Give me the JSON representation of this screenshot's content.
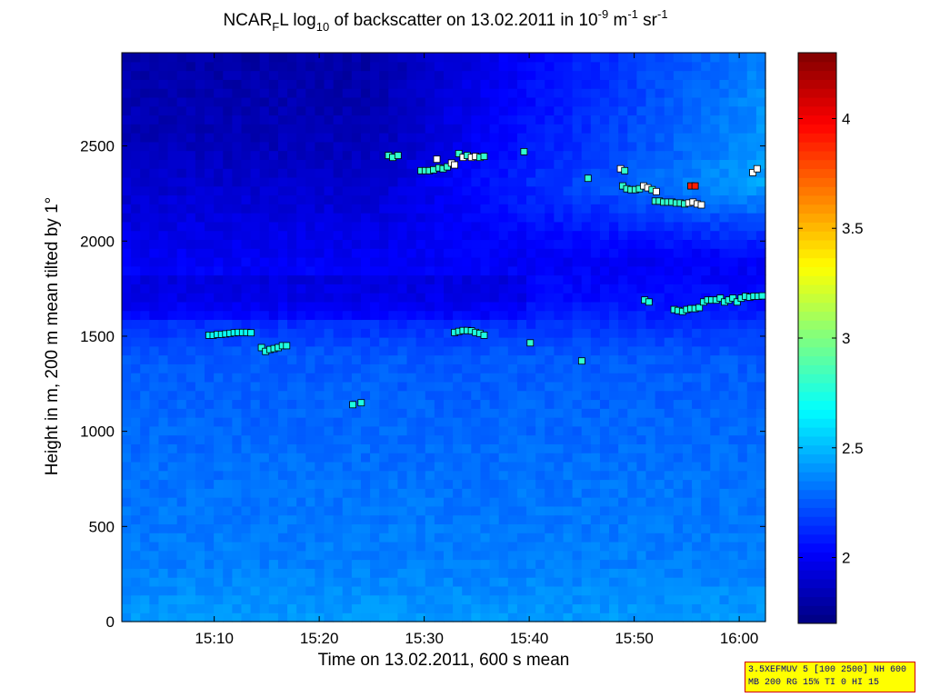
{
  "title": {
    "prefix": "NCAR",
    "sub1": "F",
    "mid1": "L log",
    "sub2": "10",
    "mid2": " of backscatter on 13.02.2011 in 10",
    "sup1": "-9",
    "mid3": " m",
    "sup2": "-1",
    "mid4": " sr",
    "sup3": "-1"
  },
  "info_box": {
    "line1": "3.5XEFMUV 5 [100 2500] NH 600",
    "line2": "MB 200 RG 15% TI 0 HI 15"
  },
  "chart_data": {
    "type": "heatmap",
    "xlabel": "Time on 13.02.2011, 600 s mean",
    "ylabel": "Height in m, 200 m mean tilted by 1°",
    "x_unit": "minutes after 15:00",
    "xlim": [
      1.2,
      62.5
    ],
    "ylim": [
      0,
      2990
    ],
    "x_ticks": [
      {
        "value": 10,
        "label": "15:10"
      },
      {
        "value": 20,
        "label": "15:20"
      },
      {
        "value": 30,
        "label": "15:30"
      },
      {
        "value": 40,
        "label": "15:40"
      },
      {
        "value": 50,
        "label": "15:50"
      },
      {
        "value": 60,
        "label": "16:00"
      }
    ],
    "y_ticks": [
      {
        "value": 0,
        "label": "0"
      },
      {
        "value": 500,
        "label": "500"
      },
      {
        "value": 1000,
        "label": "1000"
      },
      {
        "value": 1500,
        "label": "1500"
      },
      {
        "value": 2000,
        "label": "2000"
      },
      {
        "value": 2500,
        "label": "2500"
      }
    ],
    "colorbar": {
      "range": [
        1.7,
        4.3
      ],
      "ticks": [
        {
          "value": 2,
          "label": "2"
        },
        {
          "value": 2.5,
          "label": "2.5"
        },
        {
          "value": 3,
          "label": "3"
        },
        {
          "value": 3.5,
          "label": "3.5"
        },
        {
          "value": 4,
          "label": "4"
        }
      ],
      "colormap": "jet"
    },
    "field_profile": [
      {
        "height": 0,
        "value": 2.42
      },
      {
        "height": 300,
        "value": 2.35
      },
      {
        "height": 700,
        "value": 2.32
      },
      {
        "height": 1100,
        "value": 2.28
      },
      {
        "height": 1400,
        "value": 2.25
      },
      {
        "height": 1700,
        "value": 2.05
      },
      {
        "height": 2100,
        "value": 1.95
      },
      {
        "height": 2500,
        "value": 1.85
      },
      {
        "height": 2990,
        "value": 1.8
      }
    ],
    "markers": [
      {
        "x": 9.5,
        "y": 1505,
        "v": 2.7
      },
      {
        "x": 9.9,
        "y": 1505,
        "v": 2.7
      },
      {
        "x": 10.3,
        "y": 1510,
        "v": 2.7
      },
      {
        "x": 10.7,
        "y": 1510,
        "v": 2.7
      },
      {
        "x": 11.1,
        "y": 1512,
        "v": 2.7
      },
      {
        "x": 11.5,
        "y": 1515,
        "v": 2.7
      },
      {
        "x": 11.9,
        "y": 1518,
        "v": 2.7
      },
      {
        "x": 12.3,
        "y": 1520,
        "v": 2.7
      },
      {
        "x": 12.7,
        "y": 1520,
        "v": 2.7
      },
      {
        "x": 13.1,
        "y": 1520,
        "v": 2.7
      },
      {
        "x": 13.5,
        "y": 1518,
        "v": 2.7
      },
      {
        "x": 14.5,
        "y": 1440,
        "v": 2.75
      },
      {
        "x": 14.9,
        "y": 1420,
        "v": 2.75
      },
      {
        "x": 15.3,
        "y": 1430,
        "v": 2.75
      },
      {
        "x": 15.7,
        "y": 1435,
        "v": 2.75
      },
      {
        "x": 16.1,
        "y": 1440,
        "v": 2.75
      },
      {
        "x": 16.5,
        "y": 1450,
        "v": 2.75
      },
      {
        "x": 16.9,
        "y": 1450,
        "v": 2.75
      },
      {
        "x": 23.2,
        "y": 1140,
        "v": 2.75
      },
      {
        "x": 24.0,
        "y": 1150,
        "v": 2.75
      },
      {
        "x": 26.6,
        "y": 2450,
        "v": 2.8
      },
      {
        "x": 27.0,
        "y": 2440,
        "v": 2.8
      },
      {
        "x": 27.5,
        "y": 2450,
        "v": 2.8
      },
      {
        "x": 29.7,
        "y": 2370,
        "v": 2.8
      },
      {
        "x": 30.1,
        "y": 2370,
        "v": 2.8
      },
      {
        "x": 30.5,
        "y": 2370,
        "v": 2.8
      },
      {
        "x": 30.9,
        "y": 2375,
        "v": 2.8
      },
      {
        "x": 31.2,
        "y": 2430,
        "v": 4.0
      },
      {
        "x": 31.4,
        "y": 2385,
        "v": 2.8
      },
      {
        "x": 31.8,
        "y": 2380,
        "v": 2.8
      },
      {
        "x": 32.2,
        "y": 2390,
        "v": 2.8
      },
      {
        "x": 32.6,
        "y": 2410,
        "v": 4.0
      },
      {
        "x": 32.9,
        "y": 2400,
        "v": 4.0
      },
      {
        "x": 33.3,
        "y": 2460,
        "v": 2.8
      },
      {
        "x": 33.7,
        "y": 2440,
        "v": 4.0
      },
      {
        "x": 34.1,
        "y": 2450,
        "v": 2.8
      },
      {
        "x": 34.5,
        "y": 2440,
        "v": 4.0
      },
      {
        "x": 34.9,
        "y": 2445,
        "v": 4.0
      },
      {
        "x": 35.3,
        "y": 2440,
        "v": 2.8
      },
      {
        "x": 35.7,
        "y": 2445,
        "v": 2.8
      },
      {
        "x": 32.9,
        "y": 1520,
        "v": 2.75
      },
      {
        "x": 33.3,
        "y": 1525,
        "v": 2.75
      },
      {
        "x": 33.7,
        "y": 1530,
        "v": 2.75
      },
      {
        "x": 34.1,
        "y": 1530,
        "v": 2.75
      },
      {
        "x": 34.5,
        "y": 1528,
        "v": 2.75
      },
      {
        "x": 34.9,
        "y": 1520,
        "v": 2.75
      },
      {
        "x": 35.3,
        "y": 1515,
        "v": 2.75
      },
      {
        "x": 35.7,
        "y": 1505,
        "v": 2.75
      },
      {
        "x": 39.5,
        "y": 2470,
        "v": 2.8
      },
      {
        "x": 40.1,
        "y": 1465,
        "v": 2.8
      },
      {
        "x": 45.0,
        "y": 1370,
        "v": 2.8
      },
      {
        "x": 45.6,
        "y": 2330,
        "v": 2.8
      },
      {
        "x": 48.7,
        "y": 2380,
        "v": 4.0
      },
      {
        "x": 49.1,
        "y": 2370,
        "v": 2.8
      },
      {
        "x": 48.9,
        "y": 2290,
        "v": 2.8
      },
      {
        "x": 49.3,
        "y": 2275,
        "v": 2.8
      },
      {
        "x": 49.7,
        "y": 2270,
        "v": 2.8
      },
      {
        "x": 50.1,
        "y": 2270,
        "v": 2.8
      },
      {
        "x": 50.5,
        "y": 2275,
        "v": 2.8
      },
      {
        "x": 50.9,
        "y": 2290,
        "v": 4.0
      },
      {
        "x": 51.3,
        "y": 2280,
        "v": 4.0
      },
      {
        "x": 51.7,
        "y": 2270,
        "v": 2.8
      },
      {
        "x": 52.1,
        "y": 2260,
        "v": 4.0
      },
      {
        "x": 52.0,
        "y": 2210,
        "v": 2.8
      },
      {
        "x": 52.4,
        "y": 2210,
        "v": 2.8
      },
      {
        "x": 52.8,
        "y": 2205,
        "v": 2.8
      },
      {
        "x": 53.2,
        "y": 2205,
        "v": 2.8
      },
      {
        "x": 53.6,
        "y": 2205,
        "v": 2.8
      },
      {
        "x": 54.0,
        "y": 2200,
        "v": 2.8
      },
      {
        "x": 54.4,
        "y": 2200,
        "v": 2.8
      },
      {
        "x": 54.8,
        "y": 2195,
        "v": 2.8
      },
      {
        "x": 55.2,
        "y": 2200,
        "v": 4.0
      },
      {
        "x": 55.6,
        "y": 2205,
        "v": 4.0
      },
      {
        "x": 56.0,
        "y": 2195,
        "v": 4.0
      },
      {
        "x": 56.4,
        "y": 2190,
        "v": 4.0
      },
      {
        "x": 55.4,
        "y": 2290,
        "v": 3.9
      },
      {
        "x": 55.8,
        "y": 2290,
        "v": 3.9
      },
      {
        "x": 61.3,
        "y": 2360,
        "v": 4.0
      },
      {
        "x": 61.7,
        "y": 2380,
        "v": 4.0
      },
      {
        "x": 51.0,
        "y": 1690,
        "v": 2.75
      },
      {
        "x": 51.4,
        "y": 1680,
        "v": 2.75
      },
      {
        "x": 53.8,
        "y": 1640,
        "v": 2.75
      },
      {
        "x": 54.2,
        "y": 1635,
        "v": 2.75
      },
      {
        "x": 54.6,
        "y": 1630,
        "v": 2.75
      },
      {
        "x": 55.0,
        "y": 1640,
        "v": 2.75
      },
      {
        "x": 55.4,
        "y": 1645,
        "v": 2.75
      },
      {
        "x": 55.8,
        "y": 1645,
        "v": 2.75
      },
      {
        "x": 56.2,
        "y": 1650,
        "v": 2.75
      },
      {
        "x": 56.6,
        "y": 1680,
        "v": 2.75
      },
      {
        "x": 57.0,
        "y": 1690,
        "v": 2.75
      },
      {
        "x": 57.4,
        "y": 1690,
        "v": 2.75
      },
      {
        "x": 57.8,
        "y": 1690,
        "v": 2.75
      },
      {
        "x": 58.2,
        "y": 1700,
        "v": 2.75
      },
      {
        "x": 58.6,
        "y": 1680,
        "v": 2.75
      },
      {
        "x": 59.0,
        "y": 1690,
        "v": 2.75
      },
      {
        "x": 59.4,
        "y": 1700,
        "v": 2.75
      },
      {
        "x": 59.8,
        "y": 1680,
        "v": 2.75
      },
      {
        "x": 60.2,
        "y": 1700,
        "v": 2.75
      },
      {
        "x": 60.6,
        "y": 1710,
        "v": 2.75
      },
      {
        "x": 61.0,
        "y": 1705,
        "v": 2.75
      },
      {
        "x": 61.4,
        "y": 1710,
        "v": 2.75
      },
      {
        "x": 61.8,
        "y": 1710,
        "v": 2.75
      },
      {
        "x": 62.2,
        "y": 1712,
        "v": 2.75
      }
    ]
  }
}
